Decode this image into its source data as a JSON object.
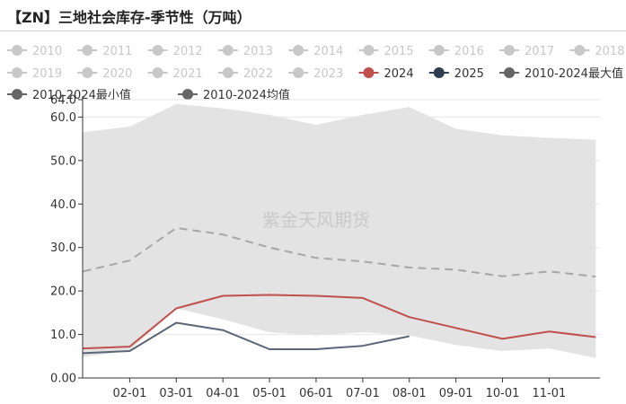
{
  "title": "【ZN】三地社会库存-季节性（万吨）",
  "watermark": "紫金天风期货",
  "colors": {
    "band": "#e3e3e3",
    "inactive": "#c8c8c8",
    "s2024": "#c0504d",
    "s2025": "#5b6678",
    "avg": "#a6a6a6",
    "minmax": "#707070",
    "grid": "#e6e6e6",
    "axis": "#333333"
  },
  "chart_data": {
    "type": "line",
    "title": "【ZN】三地社会库存-季节性（万吨）",
    "x_ticks": [
      "02-01",
      "03-01",
      "04-01",
      "05-01",
      "06-01",
      "07-01",
      "08-01",
      "09-01",
      "10-01",
      "11-01"
    ],
    "y_ticks": [
      "0.00",
      "10.0",
      "20.0",
      "30.0",
      "40.0",
      "50.0",
      "60.0",
      "64.0"
    ],
    "ylim": [
      0,
      64
    ],
    "grid": "horizontal",
    "legend_position": "top",
    "legend": [
      {
        "name": "2010",
        "active": false
      },
      {
        "name": "2011",
        "active": false
      },
      {
        "name": "2012",
        "active": false
      },
      {
        "name": "2013",
        "active": false
      },
      {
        "name": "2014",
        "active": false
      },
      {
        "name": "2015",
        "active": false
      },
      {
        "name": "2016",
        "active": false
      },
      {
        "name": "2017",
        "active": false
      },
      {
        "name": "2018",
        "active": false
      },
      {
        "name": "2019",
        "active": false
      },
      {
        "name": "2020",
        "active": false
      },
      {
        "name": "2021",
        "active": false
      },
      {
        "name": "2022",
        "active": false
      },
      {
        "name": "2023",
        "active": false
      },
      {
        "name": "2024",
        "active": true,
        "color": "#c0504d"
      },
      {
        "name": "2025",
        "active": true,
        "color": "#2e3e50"
      },
      {
        "name": "2010-2024最大值",
        "active": true,
        "color": "#666666"
      },
      {
        "name": "2010-2024最小值",
        "active": true,
        "color": "#666666"
      },
      {
        "name": "2010-2024均值",
        "active": true,
        "color": "#666666"
      }
    ],
    "x": [
      "01-01",
      "02-01",
      "03-01",
      "04-01",
      "05-01",
      "06-01",
      "07-01",
      "08-01",
      "09-01",
      "10-01",
      "11-01",
      "12-01"
    ],
    "series": [
      {
        "name": "2010-2024最大值",
        "values": [
          56.5,
          57.8,
          63.0,
          62.0,
          60.5,
          58.2,
          60.5,
          62.3,
          57.3,
          55.8,
          55.2,
          54.8
        ]
      },
      {
        "name": "2010-2024最小值",
        "values": [
          4.8,
          6.3,
          16.0,
          13.5,
          10.5,
          9.8,
          10.5,
          9.8,
          7.6,
          6.2,
          6.8,
          4.6
        ]
      },
      {
        "name": "2010-2024均值",
        "values": [
          24.5,
          27.0,
          34.5,
          33.0,
          30.0,
          27.6,
          26.8,
          25.4,
          24.9,
          23.4,
          24.5,
          23.3
        ]
      },
      {
        "name": "2024",
        "values": [
          6.8,
          7.2,
          16.0,
          18.9,
          19.1,
          18.9,
          18.4,
          14.0,
          11.5,
          9.0,
          10.7,
          9.4
        ]
      },
      {
        "name": "2025",
        "values": [
          5.7,
          6.2,
          12.7,
          11.0,
          6.6,
          6.6,
          7.4,
          9.6,
          null,
          null,
          null,
          null
        ]
      }
    ]
  }
}
